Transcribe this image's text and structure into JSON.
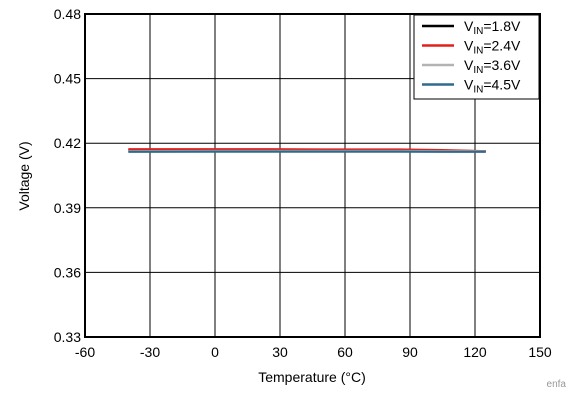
{
  "chart_data": {
    "type": "line",
    "xlabel": "Temperature (°C)",
    "ylabel": "Voltage (V)",
    "xlim": [
      -60,
      150
    ],
    "ylim": [
      0.33,
      0.48
    ],
    "xticks": [
      -60,
      -30,
      0,
      30,
      60,
      90,
      120,
      150
    ],
    "yticks": [
      0.33,
      0.36,
      0.39,
      0.42,
      0.45,
      0.48
    ],
    "xtick_labels": [
      "-60",
      "-30",
      "0",
      "30",
      "60",
      "90",
      "120",
      "150"
    ],
    "ytick_labels": [
      "0.33",
      "0.36",
      "0.39",
      "0.42",
      "0.45",
      "0.48"
    ],
    "grid": true,
    "legend_position": "top-right",
    "series": [
      {
        "name": "V_IN=1.8V",
        "legend": {
          "prefix": "V",
          "sub": "IN",
          "suffix": "=1.8V"
        },
        "color": "#000000",
        "x": [
          -40,
          0,
          25,
          50,
          85,
          105,
          125
        ],
        "y": [
          0.4167,
          0.4168,
          0.4168,
          0.4167,
          0.4167,
          0.4165,
          0.4163
        ]
      },
      {
        "name": "V_IN=2.4V",
        "legend": {
          "prefix": "V",
          "sub": "IN",
          "suffix": "=2.4V"
        },
        "color": "#e0201b",
        "x": [
          -40,
          0,
          25,
          50,
          85,
          105,
          125
        ],
        "y": [
          0.4172,
          0.4172,
          0.4172,
          0.4171,
          0.4171,
          0.4168,
          0.4163
        ]
      },
      {
        "name": "V_IN=3.6V",
        "legend": {
          "prefix": "V",
          "sub": "IN",
          "suffix": "=3.6V"
        },
        "color": "#b3b3b3",
        "x": [
          -40,
          0,
          25,
          50,
          85,
          105,
          125
        ],
        "y": [
          0.4163,
          0.4164,
          0.4164,
          0.4164,
          0.4164,
          0.4163,
          0.4162
        ]
      },
      {
        "name": "V_IN=4.5V",
        "legend": {
          "prefix": "V",
          "sub": "IN",
          "suffix": "=4.5V"
        },
        "color": "#2e6a8e",
        "x": [
          -40,
          0,
          25,
          50,
          85,
          105,
          125
        ],
        "y": [
          0.416,
          0.4161,
          0.4161,
          0.4161,
          0.4161,
          0.416,
          0.416
        ]
      }
    ]
  },
  "watermark": "enfa"
}
